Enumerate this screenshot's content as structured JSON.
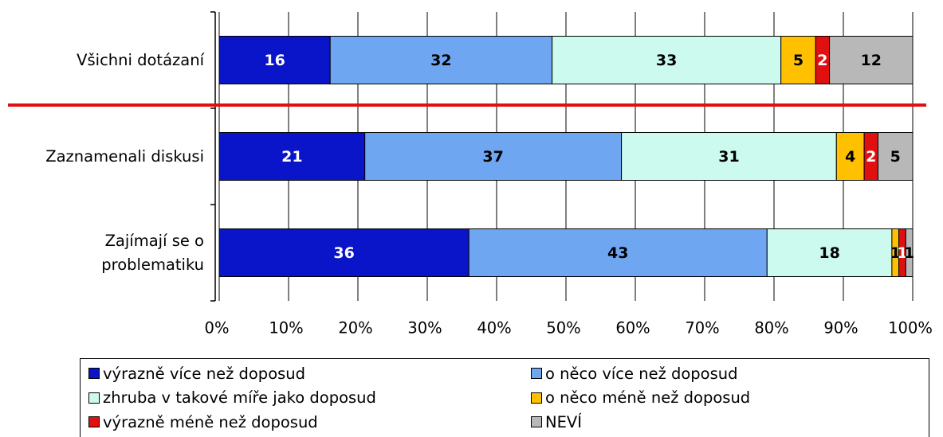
{
  "chart_data": {
    "type": "stacked-bar-horizontal",
    "categories": [
      "Všichni dotázaní",
      "Zaznamenali diskusi",
      "Zajímají se o problematiku"
    ],
    "series": [
      {
        "name": "výrazně více než doposud",
        "color": "#0a14c8",
        "values": [
          16,
          21,
          36
        ]
      },
      {
        "name": "o něco více než doposud",
        "color": "#6fa6f2",
        "values": [
          32,
          37,
          43
        ]
      },
      {
        "name": "zhruba v takové míře jako doposud",
        "color": "#ccfaee",
        "values": [
          33,
          31,
          18
        ]
      },
      {
        "name": "o něco méně než doposud",
        "color": "#ffc000",
        "values": [
          5,
          4,
          1
        ]
      },
      {
        "name": "výrazně méně než doposud",
        "color": "#e01010",
        "values": [
          2,
          2,
          1
        ]
      },
      {
        "name": "NEVÍ",
        "color": "#b8b8b8",
        "values": [
          12,
          5,
          1
        ]
      }
    ],
    "xlim": [
      0,
      100
    ],
    "xticks": [
      {
        "value": 0,
        "label": "0%"
      },
      {
        "value": 10,
        "label": "10%"
      },
      {
        "value": 20,
        "label": "20%"
      },
      {
        "value": 30,
        "label": "30%"
      },
      {
        "value": 40,
        "label": "40%"
      },
      {
        "value": 50,
        "label": "50%"
      },
      {
        "value": 60,
        "label": "60%"
      },
      {
        "value": 70,
        "label": "70%"
      },
      {
        "value": 80,
        "label": "80%"
      },
      {
        "value": 90,
        "label": "90%"
      },
      {
        "value": 100,
        "label": "100%"
      }
    ],
    "grid": true
  }
}
